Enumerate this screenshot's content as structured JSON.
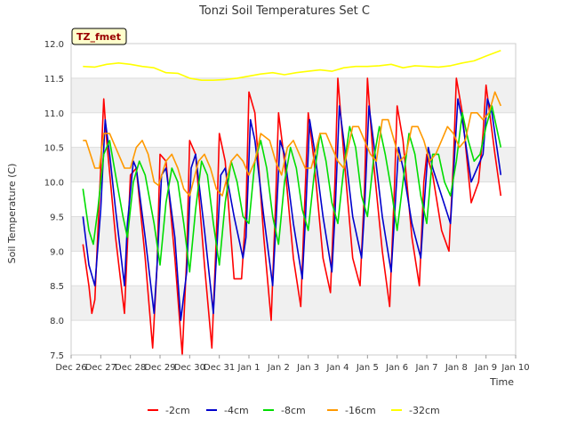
{
  "chart_data": {
    "type": "line",
    "title": "Tonzi Soil Temperatures Set C",
    "xlabel": "Time",
    "ylabel": "Soil Temperature (C)",
    "annotation": "TZ_fmet",
    "x_range_days": [
      0,
      15
    ],
    "ylim": [
      7.5,
      12.0
    ],
    "y_ticks": [
      7.5,
      8.0,
      8.5,
      9.0,
      9.5,
      10.0,
      10.5,
      11.0,
      11.5,
      12.0
    ],
    "y_tick_labels": [
      "7.5",
      "8.0",
      "8.5",
      "9.0",
      "9.5",
      "10.0",
      "10.5",
      "11.0",
      "11.5",
      "12.0"
    ],
    "x_tick_labels": [
      "Dec 26",
      "Dec 27",
      "Dec 28",
      "Dec 29",
      "Dec 30",
      "Dec 31",
      "Jan 1",
      "Jan 2",
      "Jan 3",
      "Jan 4",
      "Jan 5",
      "Jan 6",
      "Jan 7",
      "Jan 8",
      "Jan 9",
      "Jan 10"
    ],
    "grid": true,
    "background_bands": true,
    "legend_position": "bottom-center",
    "series": [
      {
        "name": "-2cm",
        "color": "#ff0000",
        "x": [
          0.4,
          0.6,
          0.7,
          0.8,
          1.0,
          1.1,
          1.2,
          1.5,
          1.8,
          2.0,
          2.2,
          2.5,
          2.75,
          2.9,
          3.0,
          3.2,
          3.5,
          3.75,
          3.9,
          4.0,
          4.2,
          4.5,
          4.75,
          4.9,
          5.0,
          5.2,
          5.5,
          5.75,
          5.9,
          6.0,
          6.2,
          6.5,
          6.75,
          6.9,
          7.0,
          7.2,
          7.5,
          7.75,
          7.9,
          8.0,
          8.2,
          8.5,
          8.75,
          8.9,
          9.0,
          9.2,
          9.5,
          9.75,
          9.9,
          10.0,
          10.2,
          10.5,
          10.75,
          10.9,
          11.0,
          11.2,
          11.5,
          11.75,
          11.9,
          12.0,
          12.2,
          12.5,
          12.75,
          12.9,
          13.0,
          13.2,
          13.5,
          13.75,
          13.9,
          14.0,
          14.3,
          14.5
        ],
        "y": [
          9.1,
          8.5,
          8.1,
          8.3,
          10.2,
          11.2,
          10.6,
          9.2,
          8.1,
          10.1,
          10.2,
          8.9,
          7.6,
          8.8,
          10.4,
          10.3,
          8.9,
          7.5,
          8.9,
          10.6,
          10.4,
          8.8,
          7.6,
          9.2,
          10.7,
          10.3,
          8.6,
          8.6,
          9.6,
          11.3,
          11.0,
          9.2,
          8.0,
          9.7,
          11.0,
          10.3,
          8.9,
          8.2,
          9.9,
          11.0,
          10.3,
          8.9,
          8.4,
          10.0,
          11.5,
          10.4,
          8.9,
          8.5,
          9.9,
          11.5,
          10.3,
          9.0,
          8.2,
          9.8,
          11.1,
          10.6,
          9.2,
          8.5,
          10.0,
          10.4,
          10.1,
          9.3,
          9.0,
          10.3,
          11.5,
          11.0,
          9.7,
          10.0,
          10.7,
          11.4,
          10.4,
          9.8
        ]
      },
      {
        "name": "-4cm",
        "color": "#0000cc",
        "x": [
          0.4,
          0.6,
          0.8,
          1.0,
          1.15,
          1.3,
          1.5,
          1.8,
          1.9,
          2.1,
          2.2,
          2.5,
          2.8,
          2.9,
          3.05,
          3.2,
          3.5,
          3.7,
          3.9,
          4.05,
          4.2,
          4.5,
          4.8,
          4.9,
          5.05,
          5.2,
          5.5,
          5.8,
          5.9,
          6.05,
          6.2,
          6.5,
          6.8,
          6.9,
          7.05,
          7.2,
          7.5,
          7.8,
          7.9,
          8.05,
          8.2,
          8.5,
          8.8,
          8.9,
          9.05,
          9.2,
          9.5,
          9.8,
          9.9,
          10.05,
          10.2,
          10.5,
          10.8,
          10.9,
          11.05,
          11.2,
          11.5,
          11.8,
          11.9,
          12.05,
          12.2,
          12.5,
          12.8,
          12.9,
          13.05,
          13.2,
          13.5,
          13.7,
          13.9,
          14.05,
          14.2,
          14.5
        ],
        "y": [
          9.5,
          8.8,
          8.5,
          9.6,
          10.9,
          10.4,
          9.6,
          8.5,
          9.4,
          10.3,
          10.2,
          9.2,
          8.1,
          8.8,
          10.1,
          10.2,
          9.2,
          8.0,
          8.7,
          10.2,
          10.4,
          9.3,
          8.1,
          8.9,
          10.1,
          10.2,
          9.5,
          8.9,
          9.2,
          10.9,
          10.6,
          9.5,
          8.5,
          9.3,
          10.6,
          10.4,
          9.4,
          8.6,
          9.4,
          10.9,
          10.5,
          9.5,
          8.7,
          9.5,
          11.1,
          10.6,
          9.5,
          8.9,
          9.6,
          11.1,
          10.6,
          9.5,
          8.7,
          9.4,
          10.5,
          10.2,
          9.4,
          8.9,
          9.6,
          10.5,
          10.2,
          9.8,
          9.4,
          10.1,
          11.2,
          10.9,
          10.0,
          10.2,
          10.4,
          11.2,
          11.0,
          10.1
        ]
      },
      {
        "name": "-8cm",
        "color": "#00dd00",
        "x": [
          0.4,
          0.6,
          0.75,
          0.9,
          1.1,
          1.3,
          1.5,
          1.75,
          1.9,
          2.1,
          2.3,
          2.5,
          2.8,
          3.0,
          3.2,
          3.4,
          3.6,
          3.8,
          4.0,
          4.2,
          4.4,
          4.6,
          4.8,
          5.0,
          5.2,
          5.4,
          5.6,
          5.8,
          6.0,
          6.2,
          6.4,
          6.6,
          6.8,
          7.0,
          7.2,
          7.4,
          7.6,
          7.8,
          8.0,
          8.2,
          8.4,
          8.6,
          8.8,
          9.0,
          9.2,
          9.4,
          9.6,
          9.8,
          10.0,
          10.2,
          10.4,
          10.6,
          10.8,
          11.0,
          11.2,
          11.4,
          11.6,
          11.8,
          12.0,
          12.2,
          12.4,
          12.6,
          12.8,
          13.0,
          13.2,
          13.4,
          13.6,
          13.8,
          14.0,
          14.2,
          14.5
        ],
        "y": [
          9.9,
          9.3,
          9.1,
          9.6,
          10.4,
          10.6,
          10.1,
          9.5,
          9.2,
          10.0,
          10.3,
          10.1,
          9.4,
          8.8,
          9.7,
          10.2,
          10.0,
          9.4,
          8.7,
          9.6,
          10.3,
          10.1,
          9.4,
          8.8,
          9.7,
          10.3,
          10.0,
          9.5,
          9.4,
          10.3,
          10.6,
          10.2,
          9.5,
          9.1,
          10.0,
          10.5,
          10.2,
          9.6,
          9.3,
          10.1,
          10.7,
          10.3,
          9.7,
          9.4,
          10.2,
          10.8,
          10.5,
          9.8,
          9.5,
          10.3,
          10.8,
          10.4,
          9.9,
          9.3,
          10.0,
          10.7,
          10.4,
          9.8,
          9.4,
          10.4,
          10.4,
          10.0,
          9.8,
          10.3,
          11.0,
          10.6,
          10.3,
          10.4,
          10.8,
          11.1,
          10.5
        ]
      },
      {
        "name": "-16cm",
        "color": "#ff9900",
        "x": [
          0.4,
          0.5,
          0.8,
          0.95,
          1.1,
          1.3,
          1.5,
          1.8,
          2.0,
          2.2,
          2.4,
          2.6,
          2.8,
          2.95,
          3.2,
          3.4,
          3.6,
          3.8,
          4.0,
          4.3,
          4.5,
          4.7,
          4.9,
          5.1,
          5.4,
          5.6,
          5.8,
          6.0,
          6.2,
          6.4,
          6.7,
          6.9,
          7.1,
          7.3,
          7.5,
          7.7,
          7.9,
          8.1,
          8.4,
          8.6,
          8.8,
          9.0,
          9.2,
          9.5,
          9.7,
          9.9,
          10.1,
          10.3,
          10.5,
          10.7,
          10.9,
          11.1,
          11.3,
          11.5,
          11.7,
          11.9,
          12.1,
          12.3,
          12.5,
          12.7,
          12.9,
          13.1,
          13.3,
          13.5,
          13.7,
          13.9,
          14.1,
          14.3,
          14.5
        ],
        "y": [
          10.6,
          10.6,
          10.2,
          10.2,
          10.7,
          10.7,
          10.5,
          10.2,
          10.2,
          10.5,
          10.6,
          10.4,
          10.0,
          9.95,
          10.3,
          10.4,
          10.2,
          9.9,
          9.8,
          10.3,
          10.4,
          10.2,
          9.9,
          9.8,
          10.3,
          10.4,
          10.3,
          10.1,
          10.3,
          10.7,
          10.6,
          10.3,
          10.1,
          10.5,
          10.6,
          10.4,
          10.2,
          10.2,
          10.7,
          10.7,
          10.5,
          10.3,
          10.2,
          10.8,
          10.8,
          10.6,
          10.4,
          10.3,
          10.9,
          10.9,
          10.6,
          10.3,
          10.4,
          10.8,
          10.8,
          10.6,
          10.3,
          10.4,
          10.6,
          10.8,
          10.7,
          10.5,
          10.6,
          11.0,
          11.0,
          10.9,
          11.0,
          11.3,
          11.1
        ]
      },
      {
        "name": "-32cm",
        "color": "#ffff00",
        "x": [
          0.4,
          0.8,
          1.2,
          1.6,
          2.0,
          2.4,
          2.8,
          3.2,
          3.6,
          4.0,
          4.4,
          4.8,
          5.2,
          5.6,
          6.0,
          6.4,
          6.8,
          7.2,
          7.6,
          8.0,
          8.4,
          8.8,
          9.2,
          9.6,
          10.0,
          10.4,
          10.8,
          11.2,
          11.6,
          12.0,
          12.4,
          12.8,
          13.2,
          13.6,
          14.0,
          14.5
        ],
        "y": [
          11.67,
          11.66,
          11.7,
          11.72,
          11.7,
          11.67,
          11.65,
          11.58,
          11.57,
          11.5,
          11.47,
          11.47,
          11.48,
          11.5,
          11.53,
          11.56,
          11.58,
          11.55,
          11.58,
          11.6,
          11.62,
          11.6,
          11.65,
          11.67,
          11.67,
          11.68,
          11.7,
          11.65,
          11.68,
          11.67,
          11.66,
          11.68,
          11.72,
          11.75,
          11.82,
          11.9
        ]
      }
    ]
  }
}
